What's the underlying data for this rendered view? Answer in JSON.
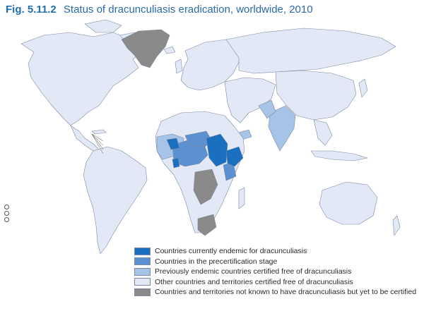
{
  "header": {
    "fig_label": "Fig. 5.11.2",
    "title": "Status of dracunculiasis eradication, worldwide, 2010"
  },
  "legend": {
    "items": [
      {
        "label": "Countries currently endemic for dracunculiasis",
        "color": "#1a6fc0"
      },
      {
        "label": "Countries in the precertification stage",
        "color": "#5b91d1"
      },
      {
        "label": "Previously endemic countries certified free of dracunculiasis",
        "color": "#a6c3e8"
      },
      {
        "label": "Other countries and territories certified free of dracunculiasis",
        "color": "#e2e8f5"
      },
      {
        "label": "Countries and territories not known to have dracunculiasis but yet to be certified",
        "color": "#8a8a8a"
      }
    ]
  },
  "colors": {
    "ocean": "#ffffff",
    "border": "#7f8aa0",
    "land_default": "#e2e8f5"
  }
}
